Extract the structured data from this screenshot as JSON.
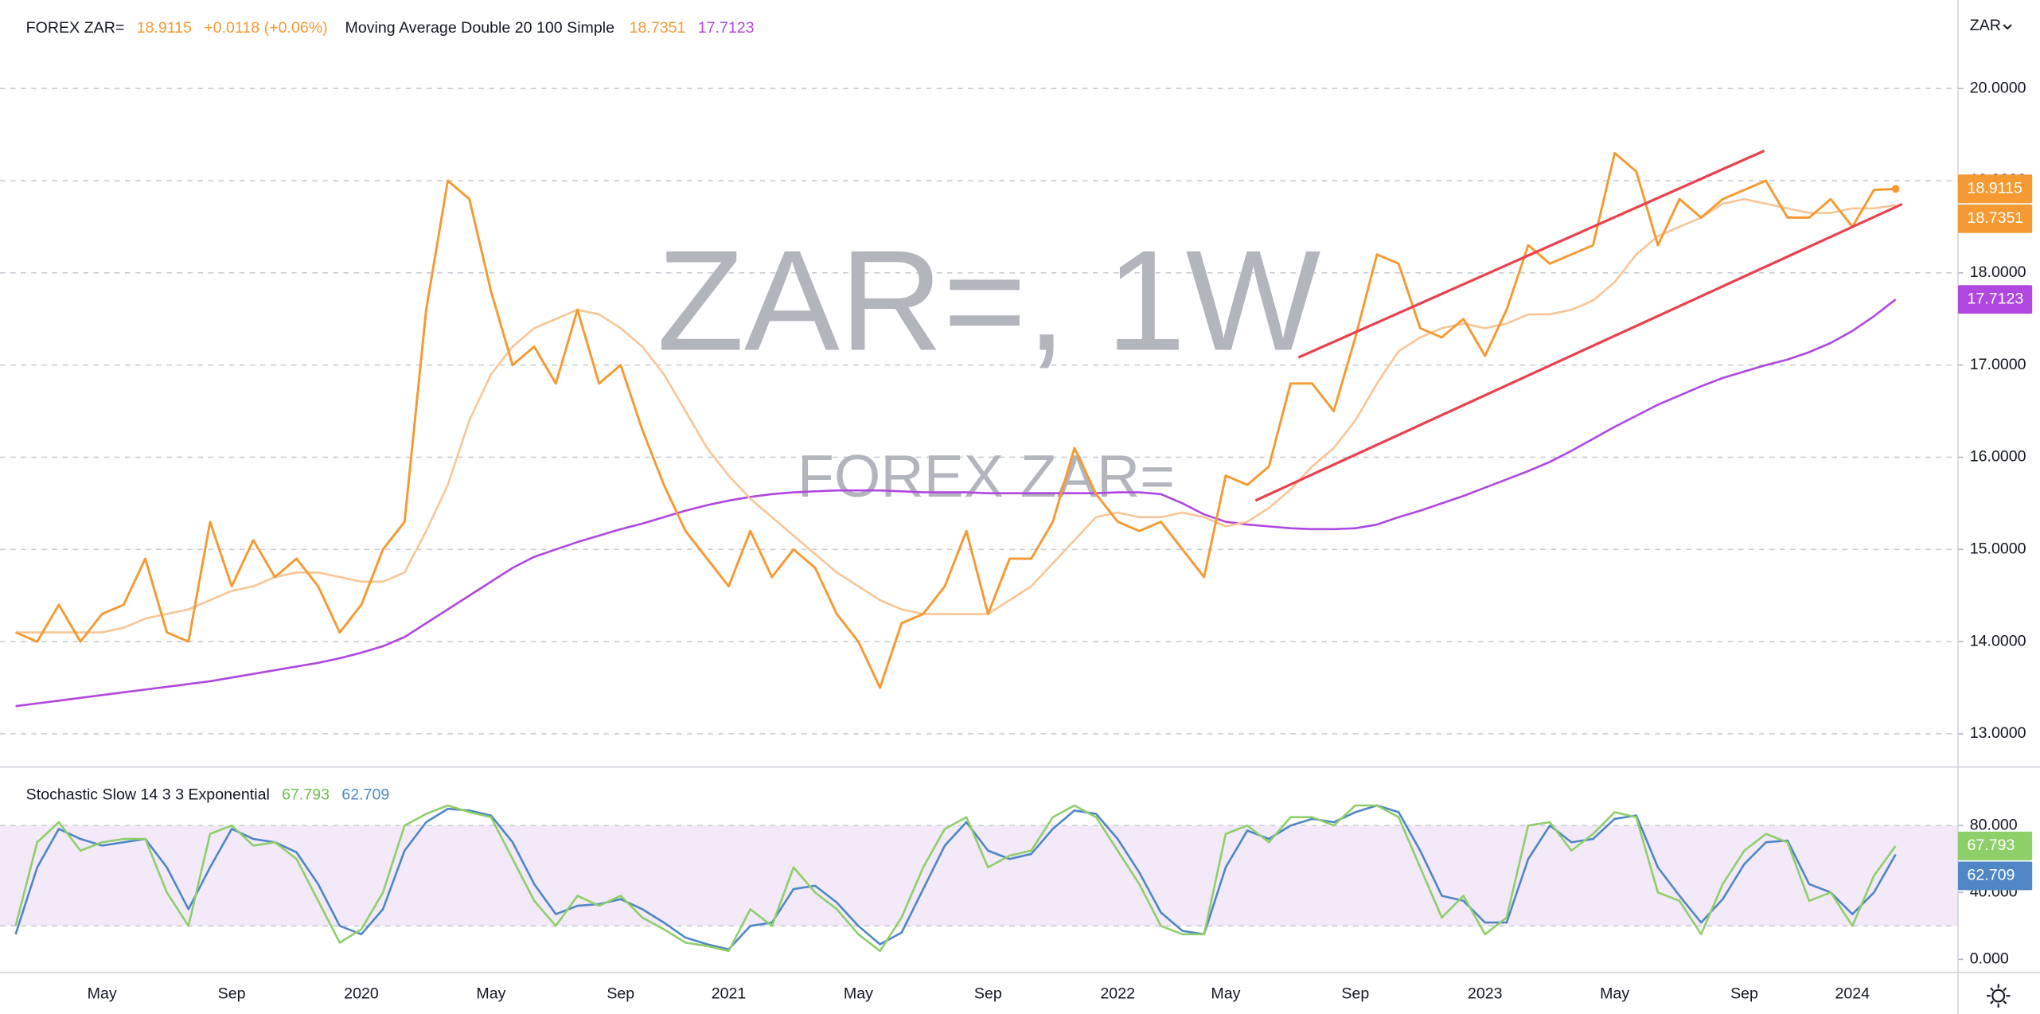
{
  "chart_data": [
    {
      "type": "line",
      "title": "ZAR=, 1W",
      "subtitle": "FOREX ZAR=",
      "change": "+0.0118 (+0.06%)",
      "indicator": "Moving Average Double 20 100 Simple",
      "currency": "ZAR",
      "categories": [
        null,
        null,
        null,
        null,
        "May",
        null,
        null,
        null,
        null,
        null,
        "Sep",
        null,
        null,
        null,
        null,
        null,
        "2020",
        null,
        null,
        null,
        null,
        null,
        "May",
        null,
        null,
        null,
        null,
        null,
        "Sep",
        null,
        null,
        null,
        null,
        "2021",
        null,
        null,
        null,
        null,
        null,
        "May",
        null,
        null,
        null,
        null,
        null,
        "Sep",
        null,
        null,
        null,
        null,
        null,
        "2022",
        null,
        null,
        null,
        null,
        "May",
        null,
        null,
        null,
        null,
        null,
        "Sep",
        null,
        null,
        null,
        null,
        null,
        "2023",
        null,
        null,
        null,
        null,
        null,
        "May",
        null,
        null,
        null,
        null,
        null,
        "Sep",
        null,
        null,
        null,
        null,
        "2024",
        null,
        null
      ],
      "ylim": [
        12.64,
        20.96
      ],
      "yticks": [
        {
          "value": 13,
          "label": "13.0000"
        },
        {
          "value": 14,
          "label": "14.0000"
        },
        {
          "value": 15,
          "label": "15.0000"
        },
        {
          "value": 16,
          "label": "16.0000"
        },
        {
          "value": 17,
          "label": "17.0000"
        },
        {
          "value": 18,
          "label": "18.0000"
        },
        {
          "value": 19,
          "label": "19.0000"
        },
        {
          "value": 20,
          "label": "20.0000"
        }
      ],
      "grid": true,
      "series": [
        {
          "name": "FOREX ZAR=",
          "color": "#f59a32",
          "values": [
            14.1,
            14.0,
            14.4,
            14.0,
            14.3,
            14.4,
            14.9,
            14.1,
            14.0,
            15.3,
            14.6,
            15.1,
            14.7,
            14.9,
            14.6,
            14.1,
            14.4,
            15.0,
            15.3,
            17.6,
            19.0,
            18.8,
            17.8,
            17.0,
            17.2,
            16.8,
            17.6,
            16.8,
            17.0,
            16.3,
            15.7,
            15.2,
            14.9,
            14.6,
            15.2,
            14.7,
            15.0,
            14.8,
            14.3,
            14.0,
            13.5,
            14.2,
            14.3,
            14.6,
            15.2,
            14.3,
            14.9,
            14.9,
            15.3,
            16.1,
            15.6,
            15.3,
            15.2,
            15.3,
            15.0,
            14.7,
            15.8,
            15.7,
            15.9,
            16.8,
            16.8,
            16.5,
            17.3,
            18.2,
            18.1,
            17.4,
            17.3,
            17.5,
            17.1,
            17.6,
            18.3,
            18.1,
            18.2,
            18.3,
            19.3,
            19.1,
            18.3,
            18.8,
            18.6,
            18.8,
            18.9,
            19.0,
            18.6,
            18.6,
            18.8,
            18.5,
            18.9,
            18.9115
          ]
        },
        {
          "color": "#f8c596",
          "values": [
            14.1,
            14.1,
            14.1,
            14.1,
            14.1,
            14.15,
            14.25,
            14.3,
            14.35,
            14.45,
            14.55,
            14.6,
            14.7,
            14.75,
            14.75,
            14.7,
            14.65,
            14.65,
            14.75,
            15.2,
            15.7,
            16.4,
            16.9,
            17.2,
            17.4,
            17.5,
            17.6,
            17.55,
            17.4,
            17.2,
            16.9,
            16.5,
            16.1,
            15.8,
            15.55,
            15.35,
            15.15,
            14.95,
            14.75,
            14.6,
            14.45,
            14.35,
            14.3,
            14.3,
            14.3,
            14.3,
            14.45,
            14.6,
            14.85,
            15.1,
            15.35,
            15.4,
            15.35,
            15.35,
            15.4,
            15.35,
            15.25,
            15.3,
            15.45,
            15.65,
            15.9,
            16.1,
            16.4,
            16.8,
            17.15,
            17.3,
            17.4,
            17.45,
            17.4,
            17.45,
            17.55,
            17.55,
            17.6,
            17.7,
            17.9,
            18.2,
            18.4,
            18.5,
            18.6,
            18.75,
            18.8,
            18.75,
            18.7,
            18.65,
            18.65,
            18.7,
            18.7,
            18.7351
          ]
        },
        {
          "color": "#b047e0",
          "values": [
            13.3,
            13.33,
            13.36,
            13.39,
            13.42,
            13.45,
            13.48,
            13.51,
            13.54,
            13.57,
            13.61,
            13.65,
            13.69,
            13.73,
            13.77,
            13.82,
            13.88,
            13.95,
            14.05,
            14.2,
            14.35,
            14.5,
            14.65,
            14.8,
            14.92,
            15.0,
            15.08,
            15.15,
            15.22,
            15.28,
            15.35,
            15.42,
            15.48,
            15.53,
            15.57,
            15.6,
            15.62,
            15.63,
            15.64,
            15.64,
            15.64,
            15.63,
            15.62,
            15.62,
            15.62,
            15.61,
            15.61,
            15.61,
            15.61,
            15.61,
            15.61,
            15.62,
            15.62,
            15.6,
            15.5,
            15.38,
            15.3,
            15.27,
            15.25,
            15.23,
            15.22,
            15.22,
            15.23,
            15.27,
            15.35,
            15.42,
            15.5,
            15.58,
            15.67,
            15.76,
            15.85,
            15.95,
            16.07,
            16.2,
            16.33,
            16.45,
            16.57,
            16.67,
            16.77,
            16.86,
            16.93,
            17.0,
            17.06,
            17.14,
            17.24,
            17.37,
            17.53,
            17.7123
          ]
        }
      ]
    },
    {
      "type": "line",
      "title": "Stochastic Slow 14 3 3 Exponential",
      "ylim": [
        -7.8,
        115
      ],
      "yticks": [
        {
          "value": 0,
          "label": "0.000"
        },
        {
          "value": 40,
          "label": "40.000"
        },
        {
          "value": 80,
          "label": "80.000"
        }
      ],
      "band": [
        20,
        80
      ],
      "series": [
        {
          "color": "#8fcf6a",
          "values": [
            20,
            70,
            82,
            65,
            70,
            72,
            72,
            40,
            20,
            75,
            80,
            68,
            70,
            60,
            35,
            10,
            18,
            40,
            80,
            87,
            92,
            88,
            85,
            60,
            35,
            20,
            38,
            32,
            38,
            25,
            18,
            10,
            8,
            5,
            30,
            20,
            55,
            40,
            30,
            15,
            5,
            25,
            55,
            78,
            85,
            55,
            62,
            65,
            85,
            92,
            85,
            65,
            45,
            20,
            15,
            15,
            75,
            80,
            70,
            85,
            85,
            80,
            92,
            92,
            85,
            55,
            25,
            38,
            15,
            25,
            80,
            82,
            65,
            75,
            88,
            85,
            40,
            35,
            15,
            45,
            65,
            75,
            70,
            35,
            40,
            20,
            50,
            67.793
          ]
        },
        {
          "color": "#4f86c6",
          "values": [
            15,
            55,
            78,
            72,
            68,
            70,
            72,
            55,
            30,
            55,
            78,
            72,
            70,
            64,
            45,
            20,
            15,
            30,
            65,
            82,
            90,
            89,
            86,
            70,
            45,
            27,
            32,
            33,
            36,
            30,
            22,
            13,
            9,
            6,
            20,
            22,
            42,
            44,
            34,
            20,
            9,
            16,
            42,
            68,
            82,
            65,
            60,
            63,
            78,
            89,
            87,
            72,
            52,
            28,
            17,
            15,
            55,
            77,
            72,
            80,
            84,
            82,
            88,
            92,
            88,
            65,
            38,
            35,
            22,
            22,
            60,
            80,
            70,
            72,
            84,
            86,
            55,
            38,
            22,
            36,
            57,
            70,
            71,
            45,
            40,
            27,
            40,
            62.709
          ]
        }
      ]
    }
  ]
}
